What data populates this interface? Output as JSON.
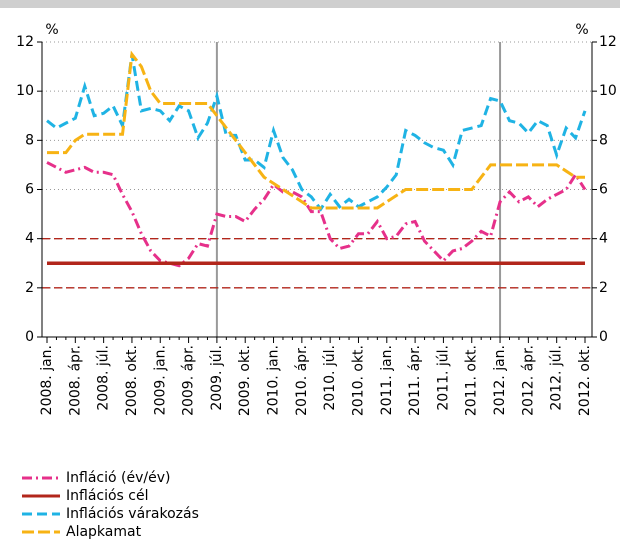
{
  "chart_data": {
    "type": "line",
    "categories": [
      "2008. jan.",
      null,
      null,
      "2008. ápr.",
      null,
      null,
      "2008. júl.",
      null,
      null,
      "2008. okt.",
      null,
      null,
      "2009. jan.",
      null,
      null,
      "2009. ápr.",
      null,
      null,
      "2009. júl.",
      null,
      null,
      "2009. okt.",
      null,
      null,
      "2010. jan.",
      null,
      null,
      "2010. ápr.",
      null,
      null,
      "2010. júl.",
      null,
      null,
      "2010. okt.",
      null,
      null,
      "2011. jan.",
      null,
      null,
      "2011. ápr.",
      null,
      null,
      "2011. júl.",
      null,
      null,
      "2011. okt.",
      null,
      null,
      "2012. jan.",
      null,
      null,
      "2012. ápr.",
      null,
      null,
      "2012. júl.",
      null,
      null,
      "2012. okt."
    ],
    "series": [
      {
        "name": "Infláció (év/év)",
        "color": "#e6308a",
        "style": "dashdot",
        "values": [
          7.1,
          6.9,
          6.7,
          6.8,
          6.9,
          6.7,
          6.7,
          6.6,
          5.8,
          5.1,
          4.2,
          3.5,
          3.1,
          3.0,
          2.9,
          3.2,
          3.8,
          3.7,
          5.0,
          4.9,
          4.9,
          4.7,
          5.2,
          5.6,
          6.2,
          5.9,
          5.9,
          5.7,
          5.1,
          5.1,
          4.0,
          3.6,
          3.7,
          4.2,
          4.2,
          4.7,
          4.0,
          4.1,
          4.6,
          4.7,
          3.9,
          3.5,
          3.1,
          3.5,
          3.6,
          3.9,
          4.3,
          4.1,
          5.5,
          5.9,
          5.5,
          5.7,
          5.3,
          5.6,
          5.8,
          6.0,
          6.6,
          6.0
        ]
      },
      {
        "name": "Inflációs cél",
        "color": "#b2261b",
        "style": "solid",
        "values": [
          3,
          3,
          3,
          3,
          3,
          3,
          3,
          3,
          3,
          3,
          3,
          3,
          3,
          3,
          3,
          3,
          3,
          3,
          3,
          3,
          3,
          3,
          3,
          3,
          3,
          3,
          3,
          3,
          3,
          3,
          3,
          3,
          3,
          3,
          3,
          3,
          3,
          3,
          3,
          3,
          3,
          3,
          3,
          3,
          3,
          3,
          3,
          3,
          3,
          3,
          3,
          3,
          3,
          3,
          3,
          3,
          3,
          3
        ]
      },
      {
        "name": "Inflációs várakozás",
        "color": "#1fb3e4",
        "style": "dashed",
        "values": [
          8.8,
          8.5,
          8.7,
          8.9,
          10.2,
          9.0,
          9.1,
          9.4,
          8.6,
          11.5,
          9.2,
          9.3,
          9.2,
          8.8,
          9.4,
          9.2,
          8.1,
          8.7,
          9.8,
          8.2,
          8.2,
          7.2,
          7.2,
          6.9,
          8.4,
          7.3,
          6.8,
          6.0,
          5.7,
          5.2,
          5.8,
          5.3,
          5.6,
          5.3,
          5.5,
          5.7,
          6.1,
          6.6,
          8.4,
          8.2,
          7.9,
          7.7,
          7.6,
          7.0,
          8.4,
          8.5,
          8.6,
          9.7,
          9.6,
          8.8,
          8.7,
          8.3,
          8.8,
          8.6,
          7.4,
          8.5,
          8.1,
          9.2
        ]
      },
      {
        "name": "Alapkamat",
        "color": "#f7b314",
        "style": "longdash",
        "values": [
          7.5,
          7.5,
          7.5,
          8.0,
          8.25,
          8.25,
          8.25,
          8.25,
          8.25,
          11.5,
          11.0,
          10.0,
          9.5,
          9.5,
          9.5,
          9.5,
          9.5,
          9.5,
          9.0,
          8.5,
          8.0,
          7.5,
          7.0,
          6.5,
          6.25,
          6.0,
          5.75,
          5.5,
          5.25,
          5.25,
          5.25,
          5.25,
          5.25,
          5.25,
          5.25,
          5.25,
          5.5,
          5.75,
          6.0,
          6.0,
          6.0,
          6.0,
          6.0,
          6.0,
          6.0,
          6.0,
          6.5,
          7.0,
          7.0,
          7.0,
          7.0,
          7.0,
          7.0,
          7.0,
          7.0,
          6.75,
          6.5,
          6.5
        ]
      }
    ],
    "reference_lines": [
      {
        "value": 4,
        "color": "#b2261b"
      },
      {
        "value": 2,
        "color": "#b2261b"
      }
    ],
    "vertical_lines": [
      "2009. júl.",
      "2012. jan."
    ],
    "y_unit": "%",
    "y2_unit": "%",
    "ylim": [
      0,
      12
    ],
    "yticks": [
      0,
      2,
      4,
      6,
      8,
      10,
      12
    ],
    "y2lim": [
      0,
      12
    ],
    "y2ticks": [
      0,
      2,
      4,
      6,
      8,
      10,
      12
    ],
    "grid": true
  }
}
